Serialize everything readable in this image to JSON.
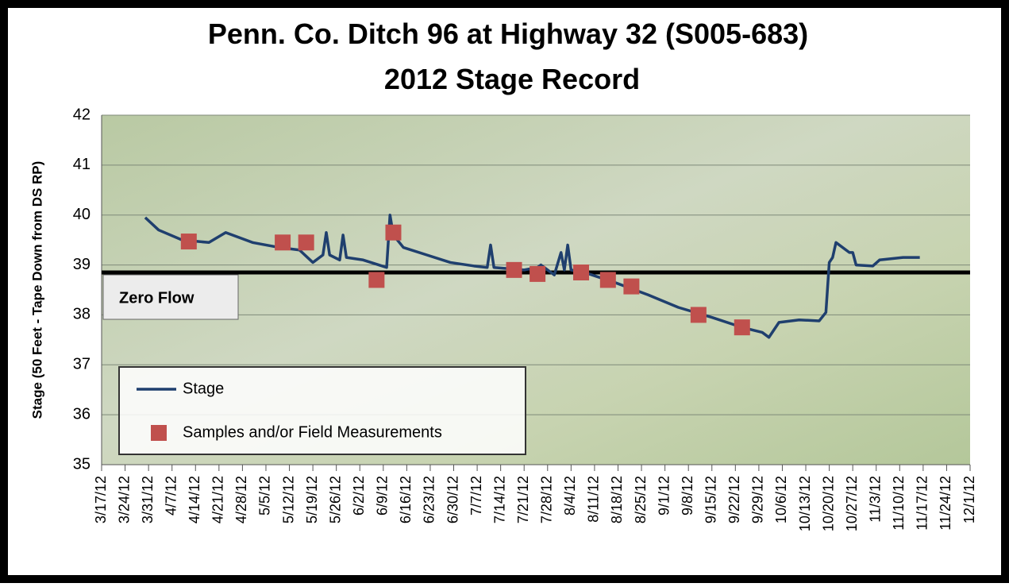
{
  "chart_data": {
    "type": "line",
    "title": [
      "Penn. Co. Ditch 96 at Highway 32 (S005-683)",
      "2012 Stage Record"
    ],
    "y_label": "Stage (50 Feet - Tape Down from DS RP)",
    "ylim": [
      35,
      42
    ],
    "yticks": [
      35,
      36,
      37,
      38,
      39,
      40,
      41,
      42
    ],
    "xlim": [
      "3/17/12",
      "12/1/12"
    ],
    "xticks": [
      "3/17/12",
      "3/24/12",
      "3/31/12",
      "4/7/12",
      "4/14/12",
      "4/21/12",
      "4/28/12",
      "5/5/12",
      "5/12/12",
      "5/19/12",
      "5/26/12",
      "6/2/12",
      "6/9/12",
      "6/16/12",
      "6/23/12",
      "6/30/12",
      "7/7/12",
      "7/14/12",
      "7/21/12",
      "7/28/12",
      "8/4/12",
      "8/11/12",
      "8/18/12",
      "8/25/12",
      "9/1/12",
      "9/8/12",
      "9/15/12",
      "9/22/12",
      "9/29/12",
      "10/6/12",
      "10/13/12",
      "10/20/12",
      "10/27/12",
      "11/3/12",
      "11/10/12",
      "11/17/12",
      "11/24/12",
      "12/1/12"
    ],
    "grid": true,
    "legend": "lower left",
    "annotation": {
      "label": "Zero Flow",
      "value": 38.85
    },
    "series": [
      {
        "name": "Stage",
        "type": "line",
        "color": "#1f3f6e",
        "x": [
          "3/30/12",
          "4/3/12",
          "4/10/12",
          "4/18/12",
          "4/23/12",
          "5/1/12",
          "5/9/12",
          "5/15/12",
          "5/19/12",
          "5/22/12",
          "5/23/12",
          "5/24/12",
          "5/27/12",
          "5/28/12",
          "5/29/12",
          "6/3/12",
          "6/10/12",
          "6/11/12",
          "6/12/12",
          "6/15/12",
          "6/22/12",
          "6/29/12",
          "7/6/12",
          "7/10/12",
          "7/11/12",
          "7/12/12",
          "7/21/12",
          "7/25/12",
          "7/26/12",
          "7/30/12",
          "8/1/12",
          "8/2/12",
          "8/3/12",
          "8/4/12",
          "8/8/12",
          "8/17/12",
          "8/27/12",
          "9/5/12",
          "9/15/12",
          "9/24/12",
          "9/30/12",
          "10/2/12",
          "10/5/12",
          "10/11/12",
          "10/17/12",
          "10/19/12",
          "10/20/12",
          "10/21/12",
          "10/22/12",
          "10/26/12",
          "10/27/12",
          "10/28/12",
          "11/2/12",
          "11/4/12",
          "11/11/12",
          "11/16/12"
        ],
        "values": [
          39.95,
          39.7,
          39.5,
          39.45,
          39.65,
          39.45,
          39.35,
          39.3,
          39.05,
          39.2,
          39.65,
          39.2,
          39.1,
          39.6,
          39.15,
          39.1,
          38.95,
          40.0,
          39.6,
          39.35,
          39.2,
          39.05,
          38.98,
          38.95,
          39.4,
          38.95,
          38.9,
          38.95,
          39.0,
          38.8,
          39.25,
          38.9,
          39.4,
          38.9,
          38.85,
          38.65,
          38.4,
          38.15,
          37.95,
          37.75,
          37.65,
          37.55,
          37.85,
          37.9,
          37.88,
          38.05,
          39.05,
          39.15,
          39.45,
          39.25,
          39.25,
          39.0,
          38.98,
          39.1,
          39.15,
          39.15
        ]
      },
      {
        "name": "Samples and/or Field Measurements",
        "type": "scatter",
        "color": "#c0504d",
        "x": [
          "4/12/12",
          "5/10/12",
          "5/17/12",
          "6/7/12",
          "6/12/12",
          "7/18/12",
          "7/25/12",
          "8/7/12",
          "8/15/12",
          "8/22/12",
          "9/11/12",
          "9/24/12"
        ],
        "values": [
          39.47,
          39.45,
          39.45,
          38.7,
          39.65,
          38.9,
          38.82,
          38.85,
          38.7,
          38.57,
          38.0,
          37.75
        ]
      }
    ]
  }
}
